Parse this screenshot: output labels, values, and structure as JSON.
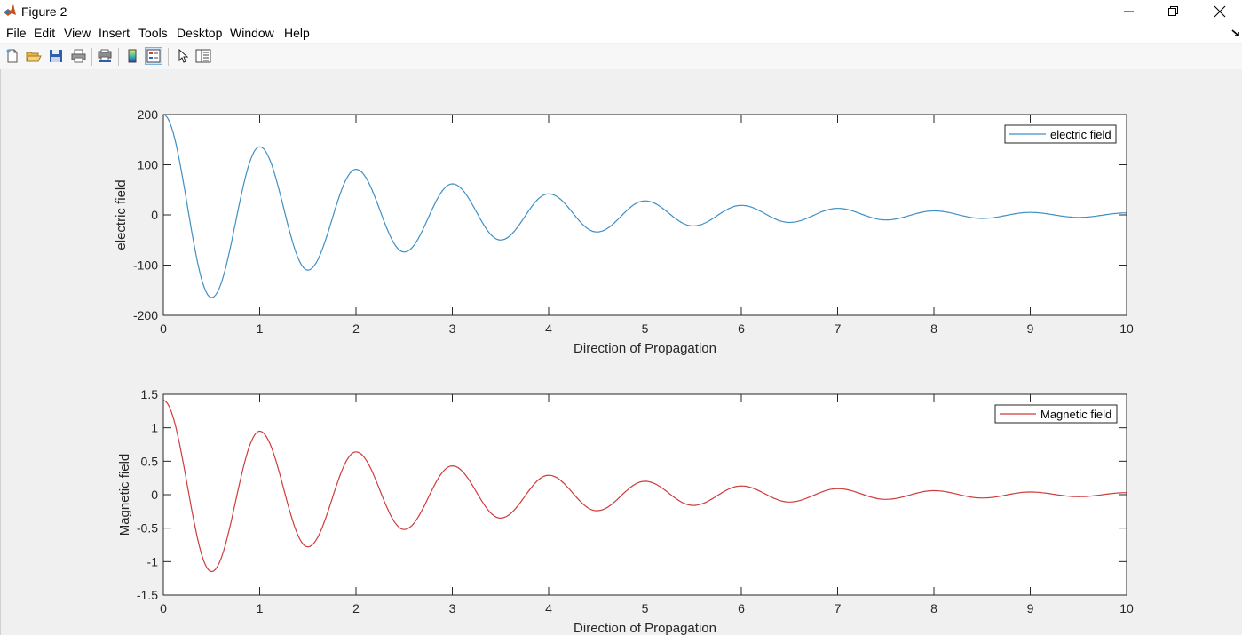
{
  "window": {
    "title": "Figure 2",
    "controls": [
      "minimize-icon",
      "restore-icon",
      "close-icon"
    ]
  },
  "menu": {
    "items": [
      "File",
      "Edit",
      "View",
      "Insert",
      "Tools",
      "Desktop",
      "Window",
      "Help"
    ]
  },
  "toolbar": {
    "icons": [
      "new-figure-icon",
      "open-file-icon",
      "save-icon",
      "print-icon",
      "print-preview-icon",
      "insert-colorbar-icon",
      "insert-legend-icon",
      "edit-plot-icon",
      "property-inspector-icon"
    ]
  },
  "colors": {
    "electric": "#3f8fc4",
    "magnetic": "#cf3b3b"
  },
  "chart_data": [
    {
      "type": "line",
      "title": "",
      "xlabel": "Direction of Propagation",
      "ylabel": "electric field",
      "xlim": [
        0,
        10
      ],
      "ylim": [
        -200,
        200
      ],
      "xticks": [
        0,
        1,
        2,
        3,
        4,
        5,
        6,
        7,
        8,
        9,
        10
      ],
      "yticks": [
        -200,
        -100,
        0,
        100,
        200
      ],
      "ytick_labels": [
        "-200",
        "-100",
        "0",
        "100",
        "200"
      ],
      "grid": false,
      "legend_position": "top-right",
      "series": [
        {
          "name": "electric field",
          "color": "#3f8fc4",
          "x": [
            0,
            0.5,
            1,
            1.5,
            2,
            2.5,
            3,
            3.5,
            4,
            4.5,
            5,
            5.5,
            6,
            6.5,
            7,
            7.5,
            8,
            8.5,
            9,
            9.5,
            10
          ],
          "values": [
            200,
            -165,
            136,
            -110,
            91,
            -74,
            62,
            -50,
            42,
            -34,
            28,
            -22,
            19,
            -15,
            13,
            -10,
            8,
            -7,
            5,
            -5,
            4
          ]
        }
      ]
    },
    {
      "type": "line",
      "title": "",
      "xlabel": "Direction of Propagation",
      "ylabel": "Magnetic field",
      "xlim": [
        0,
        10
      ],
      "ylim": [
        -1.5,
        1.5
      ],
      "xticks": [
        0,
        1,
        2,
        3,
        4,
        5,
        6,
        7,
        8,
        9,
        10
      ],
      "yticks": [
        -1.5,
        -1,
        -0.5,
        0,
        0.5,
        1,
        1.5
      ],
      "ytick_labels": [
        "-1.5",
        "-1",
        "-0.5",
        "0",
        "0.5",
        "1",
        "1.5"
      ],
      "grid": false,
      "legend_position": "top-right",
      "series": [
        {
          "name": "Magnetic field",
          "color": "#cf3b3b",
          "x": [
            0,
            0.5,
            1,
            1.5,
            2,
            2.5,
            3,
            3.5,
            4,
            4.5,
            5,
            5.5,
            6,
            6.5,
            7,
            7.5,
            8,
            8.5,
            9,
            9.5,
            10
          ],
          "values": [
            1.41,
            -1.15,
            0.95,
            -0.78,
            0.64,
            -0.52,
            0.43,
            -0.35,
            0.29,
            -0.24,
            0.2,
            -0.16,
            0.13,
            -0.11,
            0.09,
            -0.07,
            0.06,
            -0.05,
            0.04,
            -0.03,
            0.03
          ]
        }
      ]
    }
  ]
}
